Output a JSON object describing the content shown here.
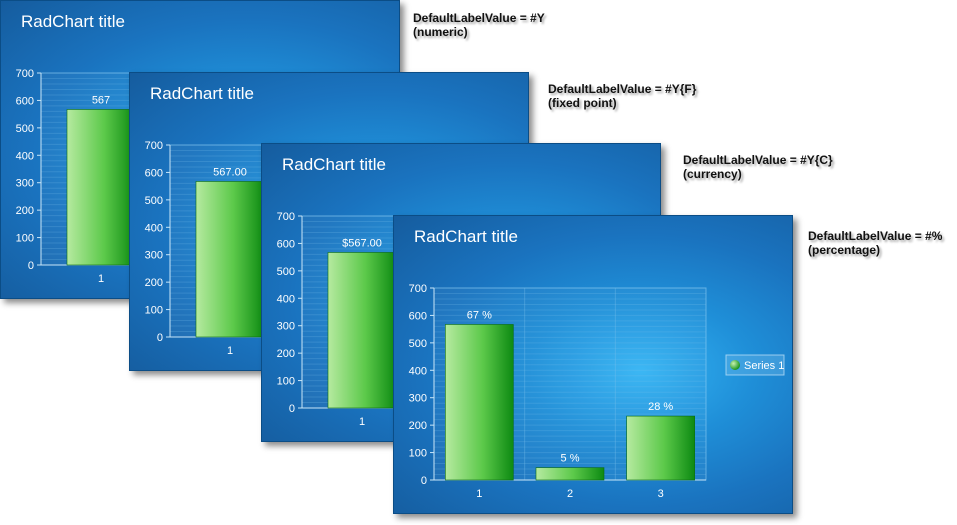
{
  "notes": [
    {
      "line1": "DefaultLabelValue = #Y",
      "line2": "(numeric)"
    },
    {
      "line1": "DefaultLabelValue = #Y{F}",
      "line2": "(fixed point)"
    },
    {
      "line1": "DefaultLabelValue = #Y{C}",
      "line2": "(currency)"
    },
    {
      "line1": "DefaultLabelValue = #%",
      "line2": "(percentage)"
    }
  ],
  "colors": {
    "bar_light": "#b6eaa0",
    "bar_dark": "#0d8a12",
    "axis_text": "#ffffff",
    "grid": "#7fc3ee"
  },
  "chart_data": [
    {
      "type": "bar",
      "title": "RadChart title",
      "categories": [
        "1"
      ],
      "values": [
        567
      ],
      "value_labels": [
        "567"
      ],
      "yticks": [
        "0",
        "100",
        "200",
        "300",
        "400",
        "500",
        "600",
        "700"
      ],
      "ylim": [
        0,
        700
      ],
      "grid": true
    },
    {
      "type": "bar",
      "title": "RadChart title",
      "categories": [
        "1"
      ],
      "values": [
        567
      ],
      "value_labels": [
        "567.00"
      ],
      "yticks": [
        "0",
        "100",
        "200",
        "300",
        "400",
        "500",
        "600",
        "700"
      ],
      "ylim": [
        0,
        700
      ],
      "grid": true
    },
    {
      "type": "bar",
      "title": "RadChart title",
      "categories": [
        "1"
      ],
      "values": [
        567
      ],
      "value_labels": [
        "$567.00"
      ],
      "yticks": [
        "0",
        "100",
        "200",
        "300",
        "400",
        "500",
        "600",
        "700"
      ],
      "ylim": [
        0,
        700
      ],
      "grid": true
    },
    {
      "type": "bar",
      "title": "RadChart title",
      "categories": [
        "1",
        "2",
        "3"
      ],
      "values": [
        567,
        45,
        233
      ],
      "value_labels": [
        "67 %",
        "5 %",
        "28 %"
      ],
      "yticks": [
        "0",
        "100",
        "200",
        "300",
        "400",
        "500",
        "600",
        "700"
      ],
      "ylim": [
        0,
        700
      ],
      "grid": true,
      "series": [
        {
          "name": "Series 1",
          "values": [
            567,
            45,
            233
          ]
        }
      ],
      "legend": "right"
    }
  ]
}
